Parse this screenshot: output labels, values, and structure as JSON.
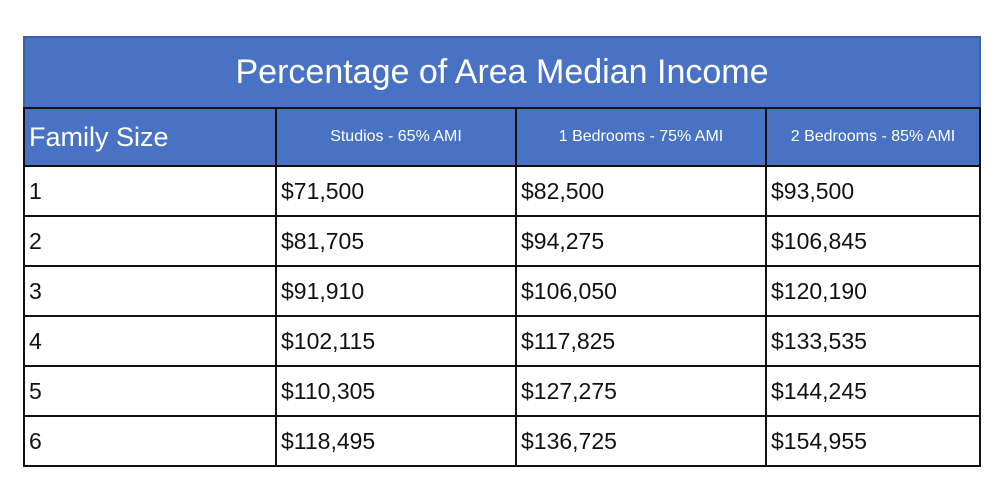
{
  "table": {
    "title": "Percentage of Area Median Income",
    "header": [
      "Family Size",
      "Studios - 65% AMI",
      "1 Bedrooms - 75% AMI",
      "2 Bedrooms - 85% AMI"
    ],
    "rows": [
      [
        "1",
        "$71,500",
        "$82,500",
        "$93,500"
      ],
      [
        "2",
        "$81,705",
        "$94,275",
        "$106,845"
      ],
      [
        "3",
        "$91,910",
        "$106,050",
        "$120,190"
      ],
      [
        "4",
        "$102,115",
        "$117,825",
        "$133,535"
      ],
      [
        "5",
        "$110,305",
        "$127,275",
        "$144,245"
      ],
      [
        "6",
        "$118,495",
        "$136,725",
        "$154,955"
      ]
    ]
  }
}
